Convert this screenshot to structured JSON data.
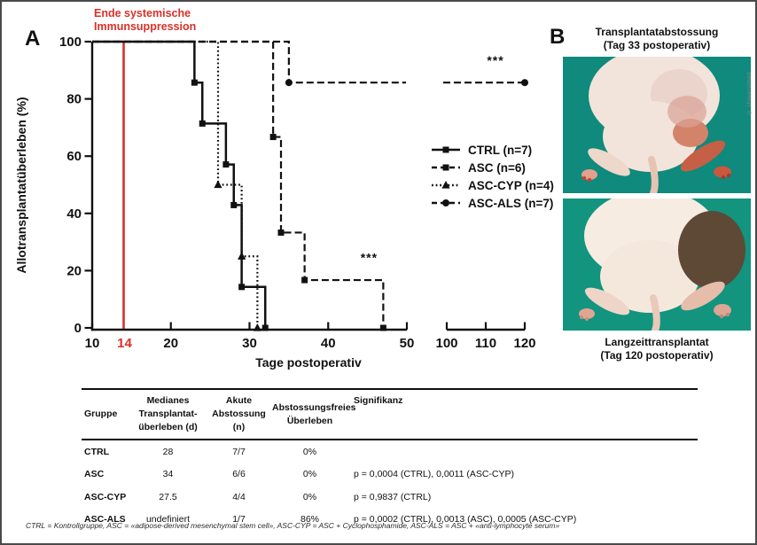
{
  "panelA": {
    "label": "A"
  },
  "panelB": {
    "label": "B",
    "top_caption_line1": "Transplantatabstossung",
    "top_caption_line2": "(Tag 33 postoperativ)",
    "bottom_caption_line1": "Langzeittransplantat",
    "bottom_caption_line2": "(Tag 120 postoperativ)",
    "photo1_bg": "#0f8a7d",
    "photo2_bg": "#12947f"
  },
  "credit": "© Universimed",
  "chart_data": {
    "type": "line",
    "subtype": "kaplan-meier-step-survival",
    "xlabel": "Tage postoperativ",
    "ylabel": "Allotransplantatüberleben (%)",
    "ylim": [
      0,
      100
    ],
    "y_ticks": [
      0,
      20,
      40,
      60,
      80,
      100
    ],
    "x_axis_break": [
      50,
      100
    ],
    "x_segment1": {
      "range": [
        10,
        50
      ],
      "ticks": [
        10,
        20,
        30,
        40,
        50
      ]
    },
    "x_segment2": {
      "range": [
        100,
        120
      ],
      "ticks": [
        100,
        110,
        120
      ]
    },
    "event_line": {
      "day": 14,
      "label": "14",
      "text_line1": "Ende systemische",
      "text_line2": "Immunsuppression",
      "color": "#d93029"
    },
    "series": [
      {
        "name": "CTRL (n=7)",
        "group": "CTRL",
        "line": "solid",
        "marker": "square",
        "color": "#111111",
        "start": [
          10,
          100
        ],
        "steps": [
          [
            23,
            85.7
          ],
          [
            24,
            71.4
          ],
          [
            27,
            57.1
          ],
          [
            28,
            42.9
          ],
          [
            29,
            14.3
          ],
          [
            32,
            0
          ]
        ]
      },
      {
        "name": "ASC (n=6)",
        "group": "ASC",
        "line": "dashed",
        "marker": "square",
        "color": "#111111",
        "start": [
          10,
          100
        ],
        "steps": [
          [
            33,
            66.7
          ],
          [
            34,
            33.3
          ],
          [
            37,
            16.7
          ],
          [
            47,
            0
          ]
        ]
      },
      {
        "name": "ASC-CYP (n=4)",
        "group": "ASC-CYP",
        "line": "dotted",
        "marker": "triangle",
        "color": "#111111",
        "start": [
          10,
          100
        ],
        "steps": [
          [
            26,
            50
          ],
          [
            29,
            25
          ],
          [
            31,
            0
          ]
        ]
      },
      {
        "name": "ASC-ALS (n=7)",
        "group": "ASC-ALS",
        "line": "dashed",
        "marker": "circle",
        "color": "#111111",
        "start": [
          10,
          100
        ],
        "steps": [
          [
            35,
            85.7
          ]
        ],
        "extend_to": 120,
        "end_marker": true
      }
    ],
    "significance": [
      {
        "text": "***",
        "near": "ASC-curve-tail",
        "x": 45.2,
        "y": 23
      },
      {
        "text": "***",
        "near": "ASC-ALS-end",
        "x": 112.5,
        "y": 92
      }
    ],
    "legend_position": "right-middle"
  },
  "table": {
    "columns": [
      {
        "label_lines": [
          "Gruppe"
        ]
      },
      {
        "label_lines": [
          "Medianes Transplantat-",
          "überleben (d)"
        ]
      },
      {
        "label_lines": [
          "Akute",
          "Abstossung (n)"
        ]
      },
      {
        "label_lines": [
          "Abstossungsfreies",
          "Überleben"
        ]
      },
      {
        "label_lines": [
          "Signifikanz"
        ]
      }
    ],
    "rows": [
      {
        "gruppe": "CTRL",
        "median": "28",
        "akut": "7/7",
        "frei": "0%",
        "signifikanz": ""
      },
      {
        "gruppe": "ASC",
        "median": "34",
        "akut": "6/6",
        "frei": "0%",
        "signifikanz": "p = 0,0004 (CTRL), 0,0011 (ASC-CYP)"
      },
      {
        "gruppe": "ASC-CYP",
        "median": "27.5",
        "akut": "4/4",
        "frei": "0%",
        "signifikanz": "p = 0,9837 (CTRL)"
      },
      {
        "gruppe": "ASC-ALS",
        "median": "undefiniert",
        "akut": "1/7",
        "frei": "86%",
        "signifikanz": "p = 0,0002 (CTRL), 0,0013 (ASC), 0,0005 (ASC-CYP)"
      }
    ]
  },
  "footnote": "CTRL = Kontrollgruppe, ASC = «adipose-derived mesenchymal stem cell», ASC-CYP = ASC + Cyclophosphamide, ASC-ALS = ASC + «anti-lymphocyte serum»"
}
